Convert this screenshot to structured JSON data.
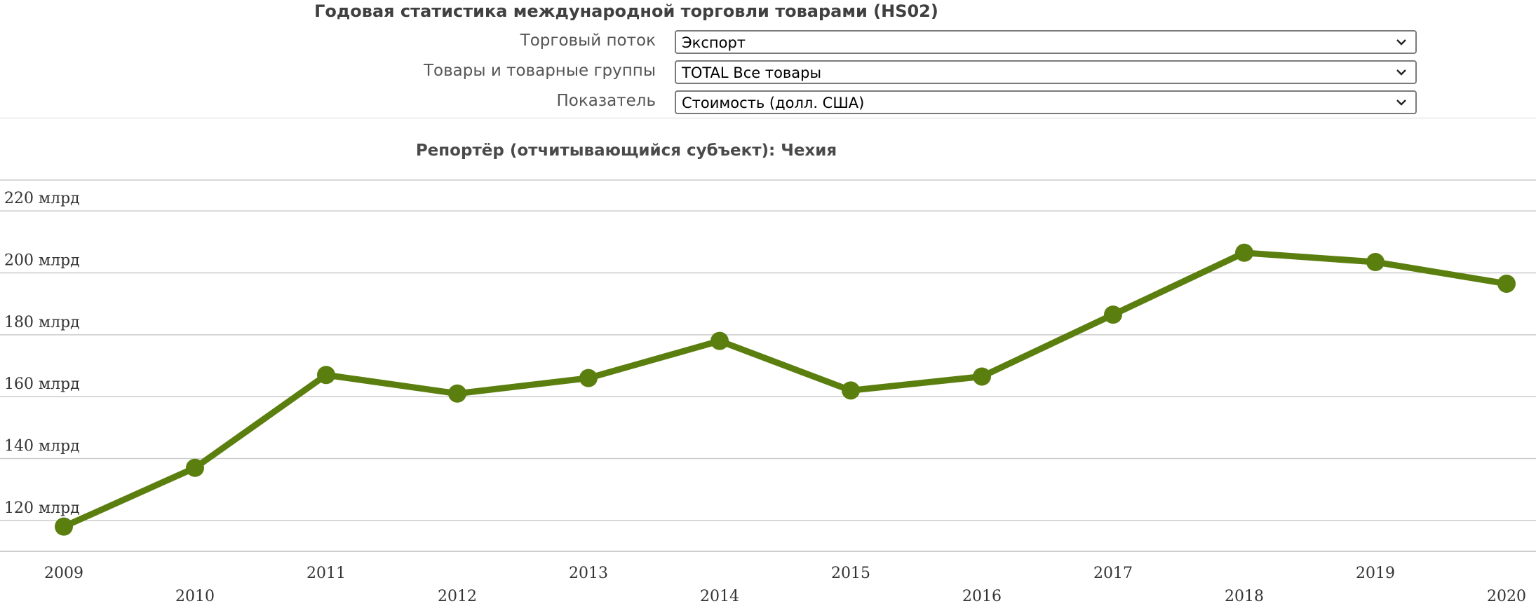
{
  "header": {
    "title": "Годовая статистика международной торговли товарами (HS02)"
  },
  "filters": [
    {
      "label": "Торговый поток",
      "value": "Экспорт"
    },
    {
      "label": "Товары и товарные группы",
      "value": "TOTAL Все товары"
    },
    {
      "label": "Показатель",
      "value": "Стоимость (долл. США)"
    }
  ],
  "colors": {
    "series": "#5b7f0f",
    "grid_major": "#cccccc",
    "grid_minor": "#e6e6e6"
  },
  "chart_data": {
    "type": "line",
    "title": "Репортёр (отчитывающийся субъект): Чехия",
    "xlabel": "",
    "ylabel": "",
    "x": [
      "2009",
      "2010",
      "2011",
      "2012",
      "2013",
      "2014",
      "2015",
      "2016",
      "2017",
      "2018",
      "2019",
      "2020"
    ],
    "series": [
      {
        "values": [
          118,
          137,
          167,
          161,
          166,
          178,
          162,
          166.5,
          186.5,
          206.5,
          203.5,
          196.5
        ]
      }
    ],
    "ylim": [
      110,
      230
    ],
    "yticks": [
      120,
      140,
      160,
      180,
      200,
      220
    ],
    "ytick_labels": [
      "120 млрд",
      "140 млрд",
      "160 млрд",
      "180 млрд",
      "200 млрд",
      "220 млрд"
    ],
    "grid": true,
    "legend": "none"
  }
}
